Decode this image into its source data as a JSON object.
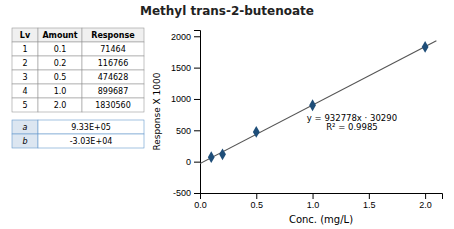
{
  "chart_data": [
    {
      "type": "scatter",
      "title": "Methyl trans-2-butenoate",
      "x_label": "Conc. (mg/L)",
      "y_label": "Response X 1000",
      "xlim": [
        0.0,
        2.15
      ],
      "ylim": [
        -500,
        2100
      ],
      "xticks": [
        {
          "value": 0.0,
          "label": "0.0"
        },
        0.5,
        {
          "value": 1.0,
          "label": "1.0"
        },
        1.5,
        {
          "value": 2.0,
          "label": "2.0"
        }
      ],
      "yticks": [
        -500,
        0,
        500,
        1000,
        1500,
        2000
      ],
      "series": [
        {
          "type": "line",
          "color": "#555555",
          "x": [
            0.0,
            2.1
          ],
          "values": [
            -30.29,
            1928.5438
          ]
        },
        {
          "type": "scatter",
          "color": "#1F4E79",
          "marker": "diamond",
          "x": [
            0.1,
            0.2,
            0.5,
            1.0,
            2.0
          ],
          "values": [
            71.464,
            116.766,
            474.628,
            899.687,
            1830.56
          ]
        }
      ],
      "annotations": [
        {
          "text": "y = 932778x · 30290",
          "x": 1.35,
          "y": 700
        },
        {
          "text": "R² = 0.9985",
          "x": 1.35,
          "y": 560
        }
      ]
    },
    {
      "type": "table",
      "columns": [
        "Lv",
        "Amount",
        "Response"
      ],
      "rows": [
        [
          1,
          0.1,
          71464
        ],
        [
          2,
          0.2,
          116766
        ],
        [
          3,
          0.5,
          474628
        ],
        [
          4,
          {
            "value": 1.0,
            "label": "1.0"
          },
          899687
        ],
        [
          5,
          {
            "value": 2.0,
            "label": "2.0"
          },
          1830560
        ]
      ]
    },
    {
      "type": "table",
      "rows": [
        [
          "a",
          "9.33E+05"
        ],
        [
          "b",
          "-3.03E+04"
        ]
      ]
    }
  ]
}
